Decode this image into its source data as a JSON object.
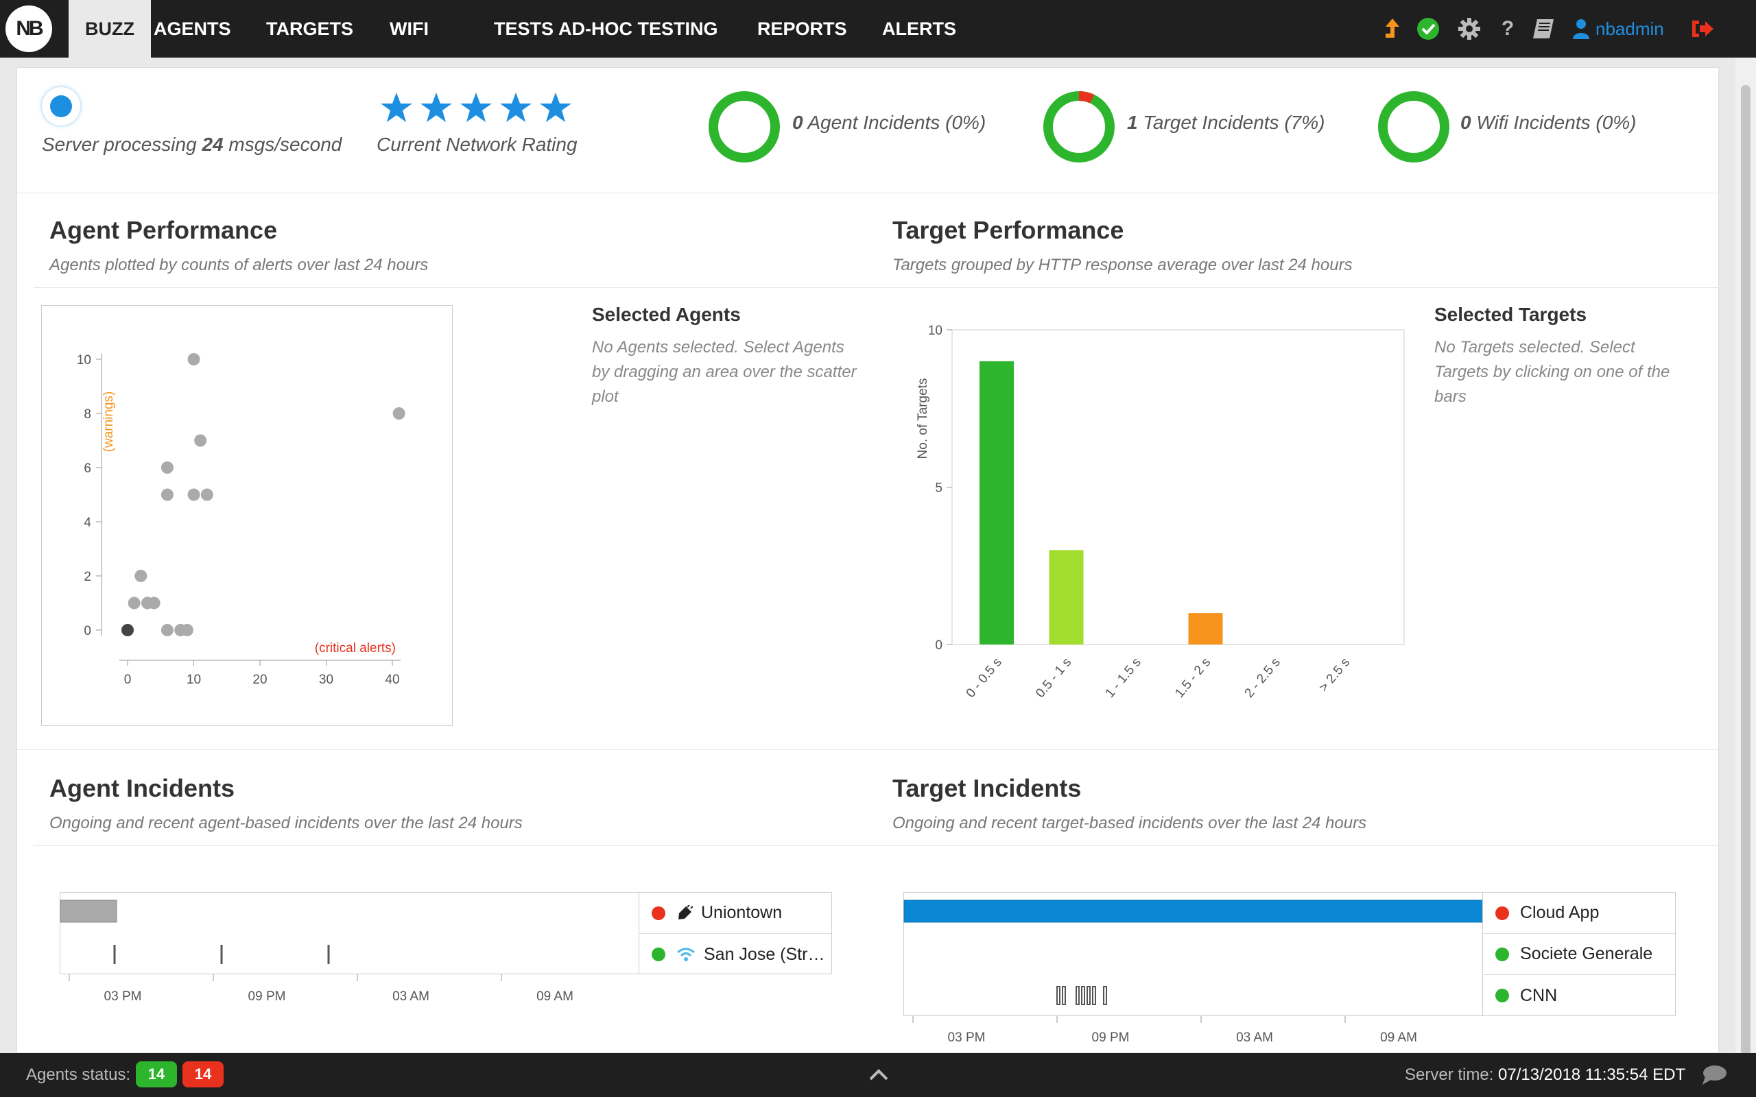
{
  "nav": {
    "logo": "NB",
    "items": [
      "BUZZ",
      "AGENTS",
      "TARGETS",
      "WIFI",
      "TESTS",
      "AD-HOC TESTING",
      "REPORTS",
      "ALERTS"
    ],
    "active": "BUZZ",
    "username": "nbadmin"
  },
  "status_row": {
    "server_prefix": "Server processing ",
    "server_rate": "24",
    "server_suffix": " msgs/second",
    "rating_stars": 5,
    "rating_label": "Current Network Rating",
    "incidents": [
      {
        "count": "0",
        "label": " Agent Incidents (0%)",
        "percent": 0
      },
      {
        "count": "1",
        "label": " Target Incidents (7%)",
        "percent": 7
      },
      {
        "count": "0",
        "label": " Wifi Incidents (0%)",
        "percent": 0
      }
    ]
  },
  "agent_performance": {
    "title": "Agent Performance",
    "subtitle": "Agents plotted by counts of alerts over last 24 hours",
    "selected_title": "Selected Agents",
    "selected_text": "No Agents selected. Select Agents by dragging an area over the scatter plot"
  },
  "target_performance": {
    "title": "Target Performance",
    "subtitle": "Targets grouped by HTTP response average over last 24 hours",
    "selected_title": "Selected Targets",
    "selected_text": "No Targets selected. Select Targets by clicking on one of the bars"
  },
  "agent_incidents": {
    "title": "Agent Incidents",
    "subtitle": "Ongoing and recent agent-based incidents over the last 24 hours",
    "legend": [
      {
        "name": "Uniontown",
        "status_color": "#e8321e",
        "icon": "plug-icon"
      },
      {
        "name": "San Jose (Str…",
        "status_color": "#2db52d",
        "icon": "wifi-icon"
      }
    ],
    "time_ticks": [
      "03 PM",
      "09 PM",
      "03 AM",
      "09 AM"
    ]
  },
  "target_incidents": {
    "title": "Target Incidents",
    "subtitle": "Ongoing and recent target-based incidents over the last 24 hours",
    "legend": [
      {
        "name": "Cloud App",
        "status_color": "#e8321e"
      },
      {
        "name": "Societe Generale",
        "status_color": "#2db52d"
      },
      {
        "name": "CNN",
        "status_color": "#2db52d"
      }
    ],
    "time_ticks": [
      "03 PM",
      "09 PM",
      "03 AM",
      "09 AM"
    ]
  },
  "footer": {
    "agents_status_label": "Agents status:",
    "agents_up": "14",
    "agents_down": "14",
    "server_time_label": "Server time: ",
    "server_time": "07/13/2018 11:35:54 EDT"
  },
  "colors": {
    "accent": "#1e8fe0",
    "ok": "#2db52d",
    "alert": "#e8321e",
    "warning": "#f7941d"
  },
  "chart_data": [
    {
      "type": "scatter",
      "title": "",
      "xlabel": "(critical alerts)",
      "ylabel": "(warnings)",
      "xlim": [
        0,
        40
      ],
      "ylim": [
        0,
        10
      ],
      "xticks": [
        0,
        10,
        20,
        30,
        40
      ],
      "yticks": [
        0,
        2,
        4,
        6,
        8,
        10
      ],
      "points": [
        {
          "x": 0,
          "y": 0,
          "dark": true
        },
        {
          "x": 1,
          "y": 1
        },
        {
          "x": 2,
          "y": 2
        },
        {
          "x": 3,
          "y": 1
        },
        {
          "x": 4,
          "y": 1
        },
        {
          "x": 6,
          "y": 0
        },
        {
          "x": 6,
          "y": 5
        },
        {
          "x": 6,
          "y": 6
        },
        {
          "x": 8,
          "y": 0
        },
        {
          "x": 9,
          "y": 0
        },
        {
          "x": 10,
          "y": 5
        },
        {
          "x": 10,
          "y": 10
        },
        {
          "x": 11,
          "y": 7
        },
        {
          "x": 12,
          "y": 5
        },
        {
          "x": 41,
          "y": 8
        }
      ]
    },
    {
      "type": "bar",
      "title": "",
      "ylabel": "No. of Targets",
      "categories": [
        "0 - 0.5 s",
        "0.5 - 1 s",
        "1 - 1.5 s",
        "1.5 - 2 s",
        "2 - 2.5 s",
        "> 2.5 s"
      ],
      "values": [
        9,
        3,
        0,
        1,
        0,
        0
      ],
      "colors": [
        "#2db52d",
        "#a2dc2c",
        "#2db52d",
        "#f7941d",
        "#2db52d",
        "#2db52d"
      ],
      "ylim": [
        0,
        10
      ],
      "yticks": [
        0,
        5,
        10
      ]
    }
  ]
}
